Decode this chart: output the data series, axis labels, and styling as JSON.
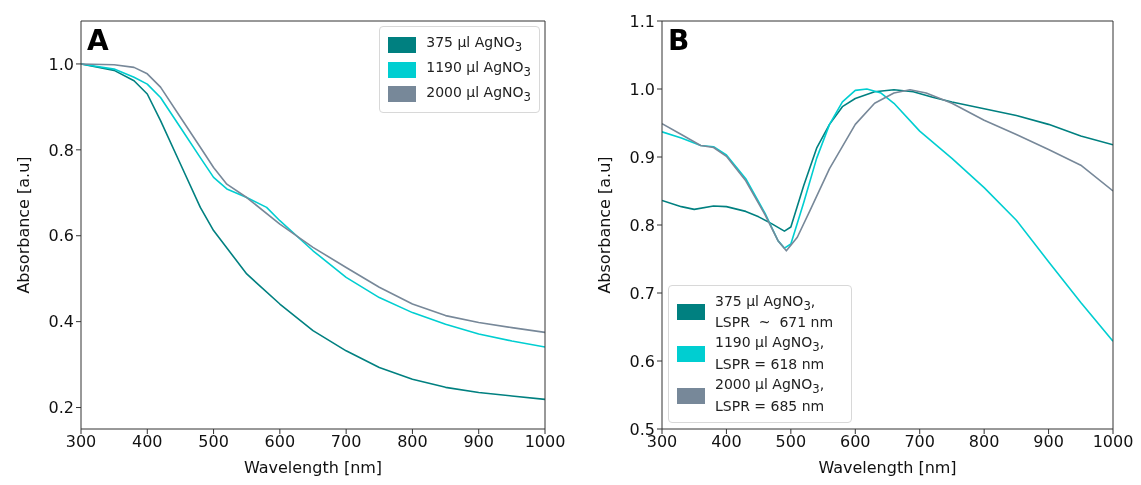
{
  "chart_data": [
    {
      "type": "line",
      "title": "A",
      "xlabel": "Wavelength [nm]",
      "ylabel": "Absorbance [a.u]",
      "xlim": [
        300,
        1000
      ],
      "xticks": [
        300,
        400,
        500,
        600,
        700,
        800,
        900,
        1000
      ],
      "ylim": [
        0.15,
        1.1
      ],
      "yticks": [
        {
          "value": 0.2,
          "label": "0.2"
        },
        {
          "value": 0.4,
          "label": "0.4"
        },
        {
          "value": 0.6,
          "label": "0.6"
        },
        {
          "value": 0.8,
          "label": "0.8"
        },
        {
          "value": 1,
          "label": "1.0"
        }
      ],
      "legend": "top right",
      "grid": false,
      "marker": "none",
      "line_style": "solid",
      "series": [
        {
          "name": "375 μl AgNO$_{3}$",
          "color": "#008080",
          "x": [
            300,
            350,
            380,
            400,
            420,
            450,
            480,
            500,
            550,
            600,
            650,
            700,
            750,
            800,
            850,
            900,
            950,
            1000
          ],
          "values": [
            1.0,
            0.985,
            0.961,
            0.93,
            0.868,
            0.767,
            0.666,
            0.612,
            0.511,
            0.441,
            0.379,
            0.332,
            0.293,
            0.266,
            0.247,
            0.235,
            0.227,
            0.219
          ]
        },
        {
          "name": "1190 μl AgNO$_{3}$",
          "color": "#00ced1",
          "x": [
            300,
            350,
            380,
            400,
            420,
            450,
            480,
            500,
            520,
            550,
            580,
            600,
            650,
            700,
            750,
            800,
            850,
            900,
            950,
            1000
          ],
          "values": [
            1.0,
            0.988,
            0.969,
            0.953,
            0.922,
            0.852,
            0.782,
            0.736,
            0.709,
            0.689,
            0.666,
            0.635,
            0.565,
            0.503,
            0.456,
            0.421,
            0.394,
            0.371,
            0.355,
            0.341
          ]
        },
        {
          "name": "2000 μl AgNO$_{3}$",
          "color": "#778899",
          "x": [
            300,
            350,
            380,
            400,
            420,
            450,
            480,
            500,
            520,
            550,
            600,
            650,
            700,
            750,
            800,
            850,
            900,
            950,
            1000
          ],
          "values": [
            1.0,
            0.998,
            0.992,
            0.977,
            0.946,
            0.876,
            0.806,
            0.759,
            0.72,
            0.689,
            0.627,
            0.573,
            0.526,
            0.48,
            0.441,
            0.414,
            0.398,
            0.386,
            0.375
          ]
        }
      ]
    },
    {
      "type": "line",
      "title": "B",
      "xlabel": "Wavelength [nm]",
      "ylabel": "Absorbance [a.u]",
      "xlim": [
        300,
        1000
      ],
      "xticks": [
        300,
        400,
        500,
        600,
        700,
        800,
        900,
        1000
      ],
      "ylim": [
        0.5,
        1.1
      ],
      "yticks": [
        {
          "value": 0.5,
          "label": "0.5"
        },
        {
          "value": 0.6,
          "label": "0.6"
        },
        {
          "value": 0.7,
          "label": "0.7"
        },
        {
          "value": 0.8,
          "label": "0.8"
        },
        {
          "value": 0.9,
          "label": "0.9"
        },
        {
          "value": 1,
          "label": "1.0"
        },
        {
          "value": 1.1,
          "label": "1.1"
        }
      ],
      "legend": "bottom left",
      "grid": false,
      "marker": "none",
      "line_style": "solid",
      "series": [
        {
          "name": "375 μl AgNO$_{3}$, LSPR  ~  671 nm",
          "color": "#008080",
          "x": [
            300,
            330,
            350,
            380,
            400,
            430,
            450,
            470,
            490,
            500,
            520,
            540,
            560,
            580,
            600,
            630,
            660,
            690,
            720,
            750,
            800,
            850,
            900,
            950,
            1000
          ],
          "values": [
            0.836,
            0.827,
            0.823,
            0.828,
            0.827,
            0.82,
            0.812,
            0.802,
            0.791,
            0.797,
            0.858,
            0.913,
            0.948,
            0.974,
            0.986,
            0.996,
            0.999,
            0.996,
            0.988,
            0.981,
            0.971,
            0.961,
            0.948,
            0.931,
            0.918
          ]
        },
        {
          "name": "1190 μl AgNO$_{3}$, LSPR = 618 nm",
          "color": "#00ced1",
          "x": [
            300,
            330,
            360,
            380,
            400,
            430,
            460,
            480,
            490,
            500,
            520,
            540,
            560,
            580,
            600,
            618,
            640,
            660,
            700,
            750,
            800,
            850,
            900,
            950,
            1000
          ],
          "values": [
            0.937,
            0.928,
            0.917,
            0.915,
            0.903,
            0.868,
            0.817,
            0.777,
            0.766,
            0.772,
            0.833,
            0.898,
            0.948,
            0.981,
            0.998,
            1.0,
            0.994,
            0.979,
            0.938,
            0.898,
            0.855,
            0.807,
            0.746,
            0.686,
            0.629
          ]
        },
        {
          "name": "2000 μl AgNO$_{3}$, LSPR = 685 nm",
          "color": "#778899",
          "x": [
            300,
            330,
            360,
            380,
            400,
            430,
            460,
            480,
            493,
            510,
            530,
            560,
            600,
            630,
            660,
            685,
            710,
            750,
            800,
            850,
            900,
            950,
            1000
          ],
          "values": [
            0.949,
            0.933,
            0.917,
            0.914,
            0.901,
            0.865,
            0.815,
            0.777,
            0.762,
            0.782,
            0.822,
            0.883,
            0.948,
            0.979,
            0.994,
            0.999,
            0.994,
            0.979,
            0.954,
            0.933,
            0.911,
            0.888,
            0.85
          ]
        }
      ]
    }
  ]
}
